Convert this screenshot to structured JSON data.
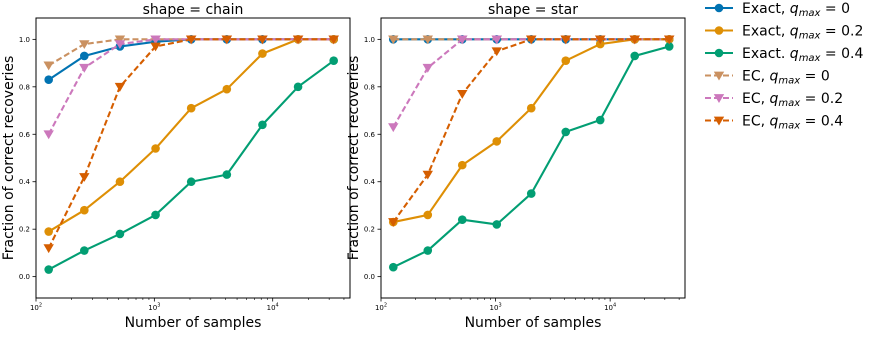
{
  "chart_data": [
    {
      "type": "line",
      "title": "shape = chain",
      "xlabel": "Number of samples",
      "ylabel": "Fraction of correct recoveries",
      "xscale": "log",
      "xlim": [
        100,
        45000
      ],
      "ylim": [
        -0.09,
        1.09
      ],
      "xtick_labels": [
        {
          "value": 100,
          "base": "10",
          "exp": "2"
        },
        {
          "value": 1000,
          "base": "10",
          "exp": "3"
        },
        {
          "value": 10000,
          "base": "10",
          "exp": "4"
        }
      ],
      "yticks": [
        0.0,
        0.2,
        0.4,
        0.6,
        0.8,
        1.0
      ],
      "ytick_labels": [
        "0.0",
        "0.2",
        "0.4",
        "0.6",
        "0.8",
        "1.0"
      ],
      "grid": false,
      "x": [
        128,
        256,
        512,
        1024,
        2048,
        4096,
        8192,
        16384,
        32768
      ],
      "series": [
        {
          "values": [
            0.83,
            0.93,
            0.97,
            0.99,
            1.0,
            1.0,
            1.0,
            1.0,
            1.0
          ]
        },
        {
          "values": [
            0.19,
            0.28,
            0.4,
            0.54,
            0.71,
            0.79,
            0.94,
            1.0,
            1.0
          ]
        },
        {
          "values": [
            0.03,
            0.11,
            0.18,
            0.26,
            0.4,
            0.43,
            0.64,
            0.8,
            0.91
          ]
        },
        {
          "values": [
            0.89,
            0.98,
            1.0,
            1.0,
            1.0,
            1.0,
            1.0,
            1.0,
            1.0
          ]
        },
        {
          "values": [
            0.6,
            0.88,
            0.98,
            1.0,
            1.0,
            1.0,
            1.0,
            1.0,
            1.0
          ]
        },
        {
          "values": [
            0.12,
            0.42,
            0.8,
            0.97,
            1.0,
            1.0,
            1.0,
            1.0,
            1.0
          ]
        }
      ]
    },
    {
      "type": "line",
      "title": "shape = star",
      "xlabel": "Number of samples",
      "ylabel": "Fraction of correct recoveries",
      "xscale": "log",
      "xlim": [
        100,
        45000
      ],
      "ylim": [
        -0.09,
        1.09
      ],
      "xtick_labels": [
        {
          "value": 100,
          "base": "10",
          "exp": "2"
        },
        {
          "value": 1000,
          "base": "10",
          "exp": "3"
        },
        {
          "value": 10000,
          "base": "10",
          "exp": "4"
        }
      ],
      "yticks": [
        0.0,
        0.2,
        0.4,
        0.6,
        0.8,
        1.0
      ],
      "ytick_labels": [
        "0.0",
        "0.2",
        "0.4",
        "0.6",
        "0.8",
        "1.0"
      ],
      "grid": false,
      "x": [
        128,
        256,
        512,
        1024,
        2048,
        4096,
        8192,
        16384,
        32768
      ],
      "series": [
        {
          "values": [
            1.0,
            1.0,
            1.0,
            1.0,
            1.0,
            1.0,
            1.0,
            1.0,
            1.0
          ]
        },
        {
          "values": [
            0.23,
            0.26,
            0.47,
            0.57,
            0.71,
            0.91,
            0.98,
            1.0,
            1.0
          ]
        },
        {
          "values": [
            0.04,
            0.11,
            0.24,
            0.22,
            0.35,
            0.61,
            0.66,
            0.93,
            0.97
          ]
        },
        {
          "values": [
            1.0,
            1.0,
            1.0,
            1.0,
            1.0,
            1.0,
            1.0,
            1.0,
            1.0
          ]
        },
        {
          "values": [
            0.63,
            0.88,
            1.0,
            1.0,
            1.0,
            1.0,
            1.0,
            1.0,
            1.0
          ]
        },
        {
          "values": [
            0.23,
            0.43,
            0.77,
            0.95,
            1.0,
            1.0,
            1.0,
            1.0,
            1.0
          ]
        }
      ]
    }
  ],
  "legend": {
    "placement": "outside-right",
    "entries": [
      {
        "prefix": "Exact, ",
        "q": "q",
        "sub": "max",
        "value": " = 0",
        "color": "#0173b2",
        "linestyle": "solid",
        "marker": "circle"
      },
      {
        "prefix": "Exact, ",
        "q": "q",
        "sub": "max",
        "value": " = 0.2",
        "color": "#de8f05",
        "linestyle": "solid",
        "marker": "circle"
      },
      {
        "prefix": "Exact. ",
        "q": "q",
        "sub": "max",
        "value": " = 0.4",
        "color": "#029e73",
        "linestyle": "solid",
        "marker": "circle"
      },
      {
        "prefix": "EC, ",
        "q": "q",
        "sub": "max",
        "value": " = 0",
        "color": "#ca9161",
        "linestyle": "dashed",
        "marker": "triangle-down"
      },
      {
        "prefix": "EC, ",
        "q": "q",
        "sub": "max",
        "value": " = 0.2",
        "color": "#cc78bc",
        "linestyle": "dashed",
        "marker": "triangle-down"
      },
      {
        "prefix": "EC, ",
        "q": "q",
        "sub": "max",
        "value": " = 0.4",
        "color": "#d55e00",
        "linestyle": "dashed",
        "marker": "triangle-down"
      }
    ]
  }
}
